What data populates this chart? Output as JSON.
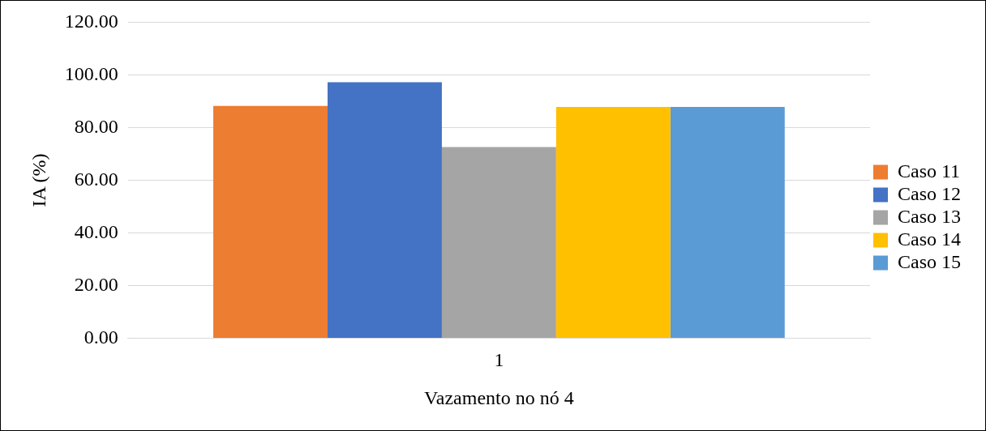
{
  "chart_data": {
    "type": "bar",
    "xlabel": "Vazamento no nó 4",
    "ylabel": "IA (%)",
    "categories": [
      "1"
    ],
    "series": [
      {
        "name": "Caso 11",
        "color": "#ed7d31",
        "values": [
          88.2
        ]
      },
      {
        "name": "Caso 12",
        "color": "#4472c4",
        "values": [
          97.2
        ]
      },
      {
        "name": "Caso 13",
        "color": "#a5a5a5",
        "values": [
          72.6
        ]
      },
      {
        "name": "Caso 14",
        "color": "#ffc000",
        "values": [
          87.8
        ]
      },
      {
        "name": "Caso 15",
        "color": "#5b9bd5",
        "values": [
          87.8
        ]
      }
    ],
    "ylim": [
      0,
      120
    ],
    "yticks": [
      {
        "value": 0,
        "label": "0.00"
      },
      {
        "value": 20,
        "label": "20.00"
      },
      {
        "value": 40,
        "label": "40.00"
      },
      {
        "value": 60,
        "label": "60.00"
      },
      {
        "value": 80,
        "label": "80.00"
      },
      {
        "value": 100,
        "label": "100.00"
      },
      {
        "value": 120,
        "label": "120.00"
      }
    ],
    "grid": "y",
    "legend": "right"
  }
}
